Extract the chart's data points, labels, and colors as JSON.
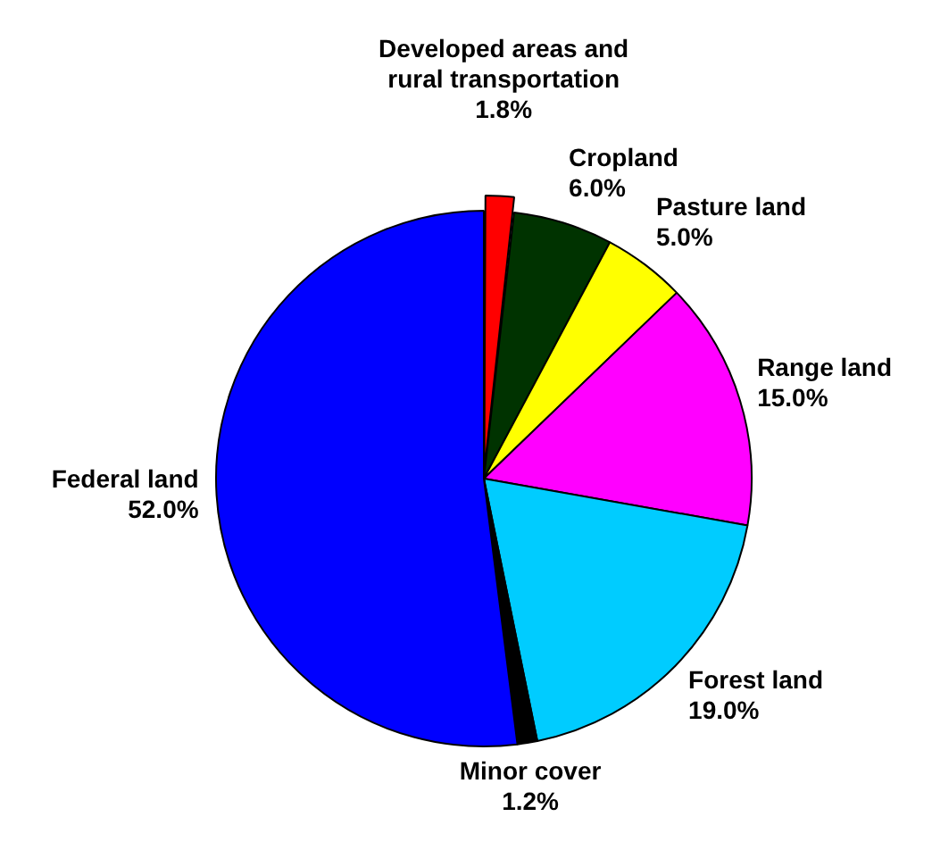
{
  "chart_data": {
    "type": "pie",
    "categories": [
      "Developed areas and rural transportation",
      "Cropland",
      "Pasture land",
      "Range land",
      "Forest land",
      "Minor cover",
      "Federal land"
    ],
    "values": [
      1.8,
      6.0,
      5.0,
      15.0,
      19.0,
      1.2,
      52.0
    ],
    "value_labels": [
      "1.8%",
      "6.0%",
      "5.0%",
      "15.0%",
      "19.0%",
      "1.2%",
      "52.0%"
    ],
    "colors": [
      "#ff0000",
      "#003300",
      "#ffff00",
      "#ff00ff",
      "#00ccff",
      "#000000",
      "#0000ff"
    ],
    "legend": false
  }
}
